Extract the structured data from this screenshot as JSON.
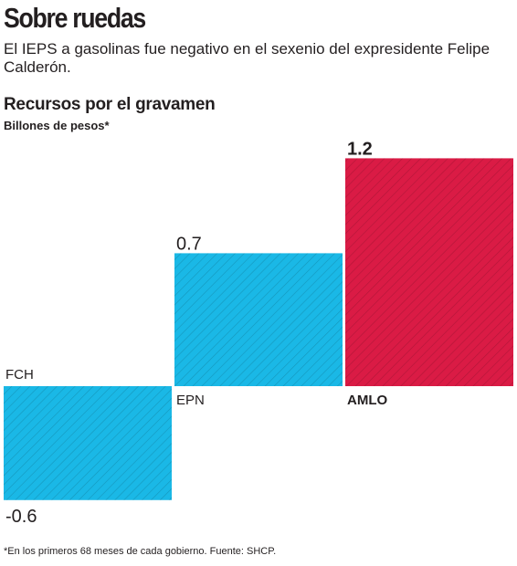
{
  "header": {
    "title": "Sobre ruedas",
    "subtitle": "El IEPS a gasolinas fue negativo en el sexenio del expresidente Felipe Calderón."
  },
  "chart_data": {
    "type": "bar",
    "title": "Recursos por el gravamen",
    "ylabel": "Billones de pesos*",
    "categories": [
      "FCH",
      "EPN",
      "AMLO"
    ],
    "values": [
      -0.6,
      0.7,
      1.2
    ],
    "value_labels": [
      "-0.6",
      "0.7",
      "1.2"
    ],
    "colors": [
      "#1ab8e6",
      "#1ab8e6",
      "#da1b45"
    ],
    "ylim": [
      -0.6,
      1.2
    ],
    "grid": false,
    "bar_style": "diagonal hatch"
  },
  "footnote": "*En los primeros 68 meses de cada gobierno. Fuente: SHCP."
}
